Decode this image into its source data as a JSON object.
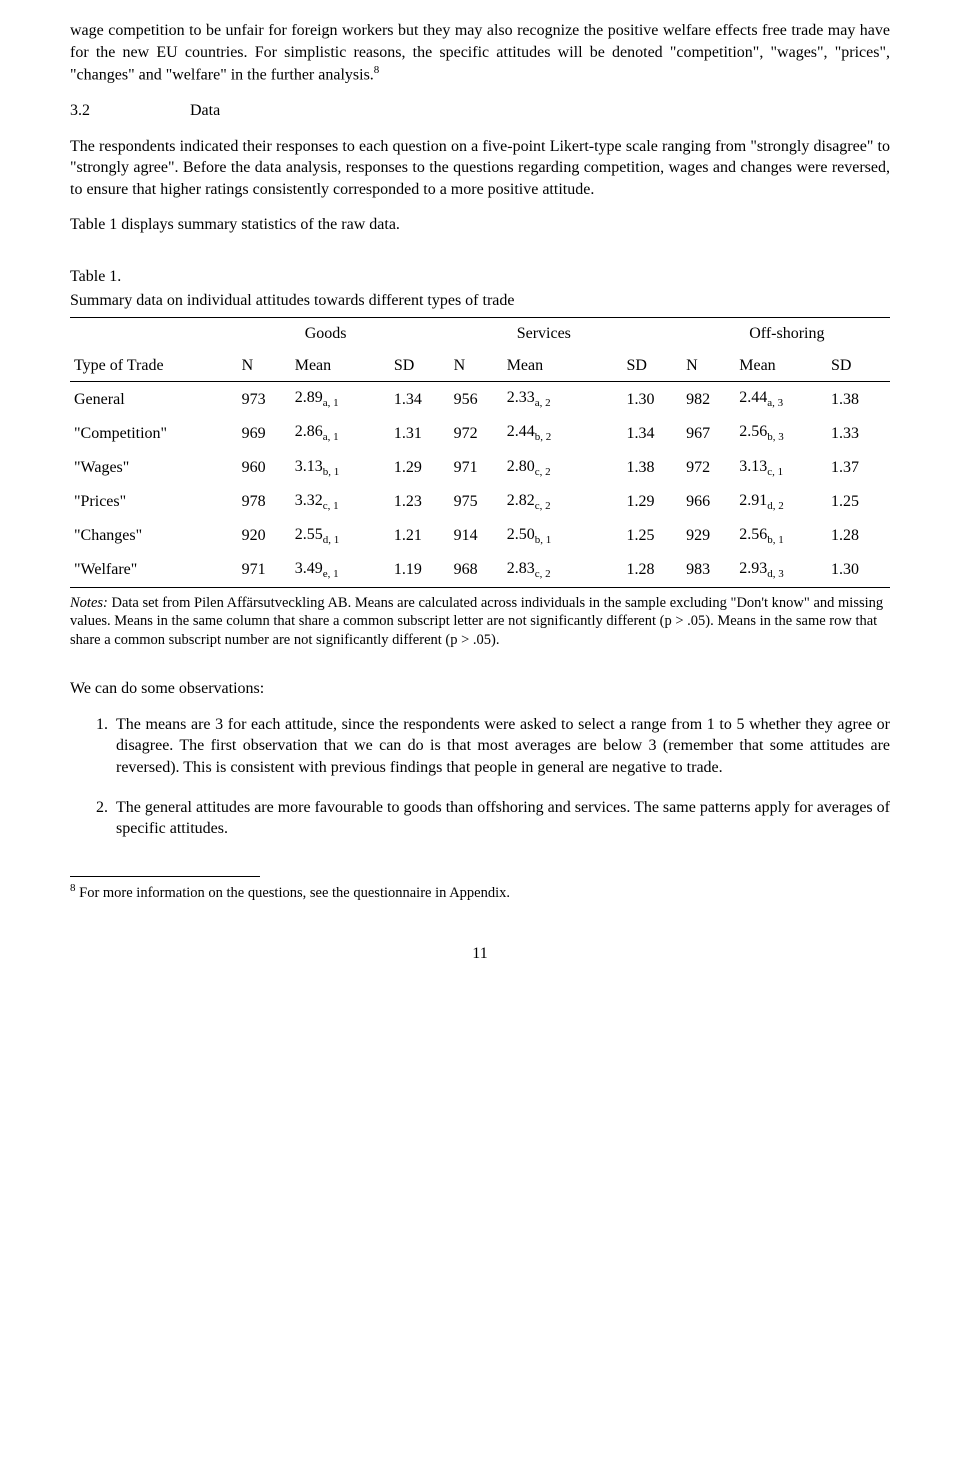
{
  "para1": "wage competition to be unfair for foreign workers but they may also recognize the positive welfare effects free trade may have for the new EU countries. For simplistic reasons, the specific attitudes will be denoted \"competition\", \"wages\", \"prices\", \"changes\" and \"welfare\" in the further analysis.",
  "para1_sup": "8",
  "section_num": "3.2",
  "section_title": "Data",
  "para2": "The respondents indicated their responses to each question on a five-point Likert-type scale ranging from \"strongly disagree\" to \"strongly agree\". Before the data analysis, responses to the questions regarding competition, wages and changes were reversed, to ensure that higher ratings consistently corresponded to a more positive attitude.",
  "para3": "Table 1 displays summary statistics of the raw data.",
  "table_label": "Table 1.",
  "table_caption": "Summary data on individual attitudes towards different types of trade",
  "groups": {
    "g1": "Goods",
    "g2": "Services",
    "g3": "Off-shoring"
  },
  "headers": {
    "c0": "Type of Trade",
    "c1": "N",
    "c2": "Mean",
    "c3": "SD"
  },
  "rows": [
    {
      "label": "General",
      "g": {
        "n": "973",
        "mean": "2.89",
        "sub": "a, 1",
        "sd": "1.34"
      },
      "s": {
        "n": "956",
        "mean": "2.33",
        "sub": "a, 2",
        "sd": "1.30"
      },
      "o": {
        "n": "982",
        "mean": "2.44",
        "sub": "a, 3",
        "sd": "1.38"
      }
    },
    {
      "label": "\"Competition\"",
      "g": {
        "n": "969",
        "mean": "2.86",
        "sub": "a, 1",
        "sd": "1.31"
      },
      "s": {
        "n": "972",
        "mean": "2.44",
        "sub": "b, 2",
        "sd": "1.34"
      },
      "o": {
        "n": "967",
        "mean": "2.56",
        "sub": "b, 3",
        "sd": "1.33"
      }
    },
    {
      "label": "\"Wages\"",
      "g": {
        "n": "960",
        "mean": "3.13",
        "sub": "b, 1",
        "sd": "1.29"
      },
      "s": {
        "n": "971",
        "mean": "2.80",
        "sub": "c, 2",
        "sd": "1.38"
      },
      "o": {
        "n": "972",
        "mean": "3.13",
        "sub": "c, 1",
        "sd": "1.37"
      }
    },
    {
      "label": "\"Prices\"",
      "g": {
        "n": "978",
        "mean": "3.32",
        "sub": "c, 1",
        "sd": "1.23"
      },
      "s": {
        "n": "975",
        "mean": "2.82",
        "sub": "c, 2",
        "sd": "1.29"
      },
      "o": {
        "n": "966",
        "mean": "2.91",
        "sub": "d, 2",
        "sd": "1.25"
      }
    },
    {
      "label": "\"Changes\"",
      "g": {
        "n": "920",
        "mean": "2.55",
        "sub": "d, 1",
        "sd": "1.21"
      },
      "s": {
        "n": "914",
        "mean": "2.50",
        "sub": "b, 1",
        "sd": "1.25"
      },
      "o": {
        "n": "929",
        "mean": "2.56",
        "sub": "b, 1",
        "sd": "1.28"
      }
    },
    {
      "label": "\"Welfare\"",
      "g": {
        "n": "971",
        "mean": "3.49",
        "sub": "e, 1",
        "sd": "1.19"
      },
      "s": {
        "n": "968",
        "mean": "2.83",
        "sub": "c, 2",
        "sd": "1.28"
      },
      "o": {
        "n": "983",
        "mean": "2.93",
        "sub": "d, 3",
        "sd": "1.30"
      }
    }
  ],
  "notes_label": "Notes:",
  "notes": " Data set from Pilen Affärsutveckling AB. Means are calculated across individuals in the sample excluding \"Don't know\" and missing values. Means in the same column that share a common subscript letter are not significantly different (p > .05). Means in the same row that share a common subscript number are not significantly different (p > .05).",
  "obs_intro": "We can do some observations:",
  "obs": [
    "The means are 3 for each attitude, since the respondents were asked to select a range from 1 to 5 whether they agree or disagree. The first observation that we can do is that most averages are below 3 (remember that some attitudes are reversed). This is consistent with previous findings that people in general are negative to trade.",
    "The general attitudes are more favourable to goods than offshoring and services. The same patterns apply for averages of specific attitudes."
  ],
  "footnote_num": "8",
  "footnote_text": " For more information on the questions, see the questionnaire in Appendix.",
  "page_number": "11"
}
